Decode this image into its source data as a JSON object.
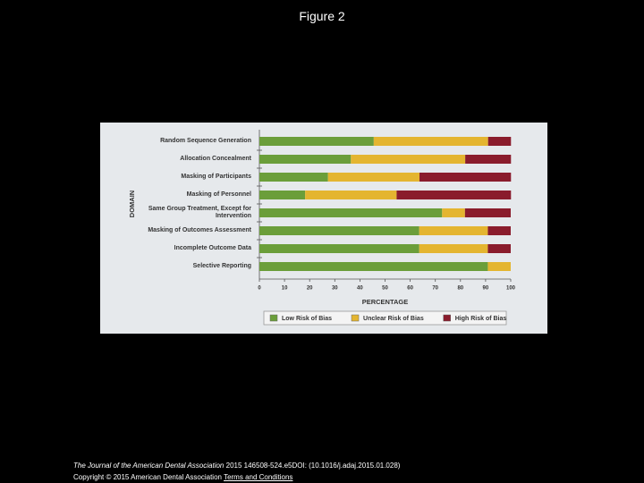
{
  "slide_title": "Figure 2",
  "chart_data": {
    "type": "bar",
    "orientation": "horizontal",
    "stacked": true,
    "xlabel": "PERCENTAGE",
    "ylabel": "DOMAIN",
    "categories": [
      "Random Sequence Generation",
      "Allocation Concealment",
      "Masking of Participants",
      "Masking of Personnel",
      "Same Group Treatment, Except for Intervention",
      "Masking of Outcomes Assessment",
      "Incomplete Outcome Data",
      "Selective Reporting"
    ],
    "series": [
      {
        "name": "Low Risk of Bias",
        "color": "#6b9e3a",
        "values": [
          45.5,
          36.4,
          27.3,
          18.2,
          72.7,
          63.6,
          63.6,
          90.9
        ]
      },
      {
        "name": "Unclear Risk of Bias",
        "color": "#e4b530",
        "values": [
          45.5,
          45.5,
          36.4,
          36.4,
          9.1,
          27.3,
          27.3,
          9.1
        ]
      },
      {
        "name": "High Risk of Bias",
        "color": "#8a1c2c",
        "values": [
          9.1,
          18.2,
          36.4,
          45.5,
          18.2,
          9.1,
          9.1,
          0
        ]
      }
    ],
    "xlim": [
      0,
      100
    ],
    "xticks": [
      0,
      10,
      20,
      30,
      40,
      50,
      60,
      70,
      80,
      90,
      100
    ],
    "legend": "bottom"
  },
  "footer": {
    "journal": "The Journal of the American Dental Association",
    "citation": "2015 146508-524.e5DOI: (10.1016/j.adaj.2015.01.028)",
    "copyright": "Copyright © 2015 American Dental Association",
    "link": "Terms and Conditions"
  }
}
